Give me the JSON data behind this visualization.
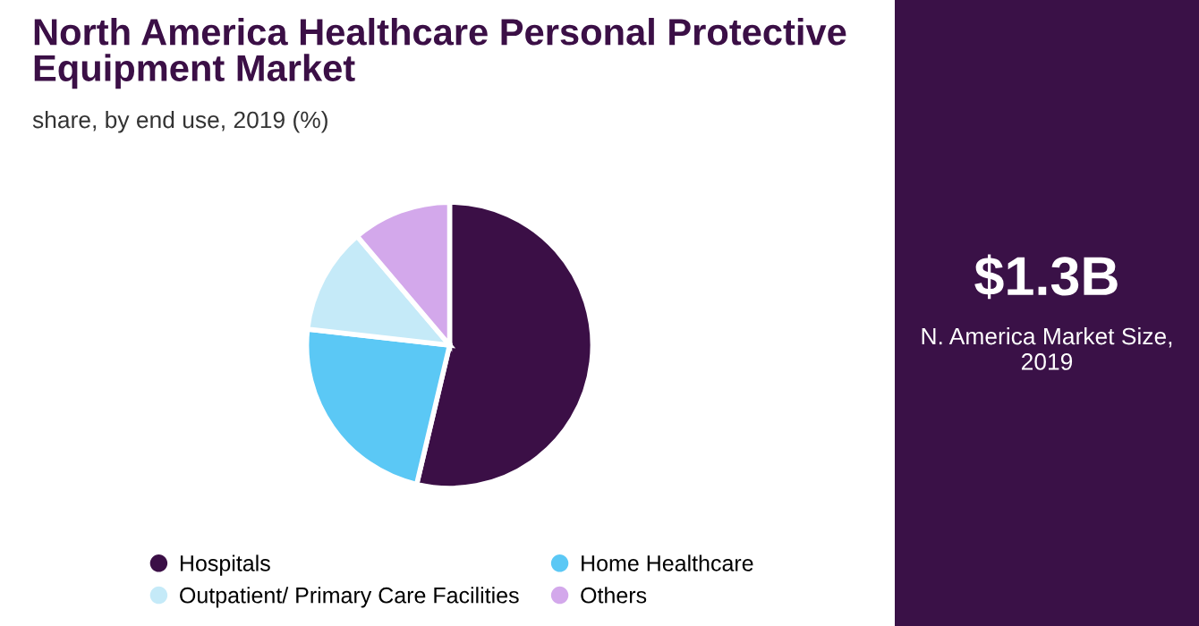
{
  "chart_data": [
    {
      "type": "pie",
      "title": "North America Healthcare Personal Protective Equipment Market",
      "subtitle": "share, by end use, 2019 (%)",
      "categories": [
        "Hospitals",
        "Home Healthcare",
        "Outpatient/ Primary Care Facilities",
        "Others"
      ],
      "values": [
        53.7,
        23.1,
        12.0,
        11.2
      ],
      "colors": [
        "#3b0f46",
        "#5bc8f5",
        "#c5eaf8",
        "#d3a8eb"
      ],
      "legend": "bottom"
    },
    {
      "type": "other",
      "title": "$1.3B",
      "subtitle": "N. America Market Size,\n2019"
    }
  ]
}
